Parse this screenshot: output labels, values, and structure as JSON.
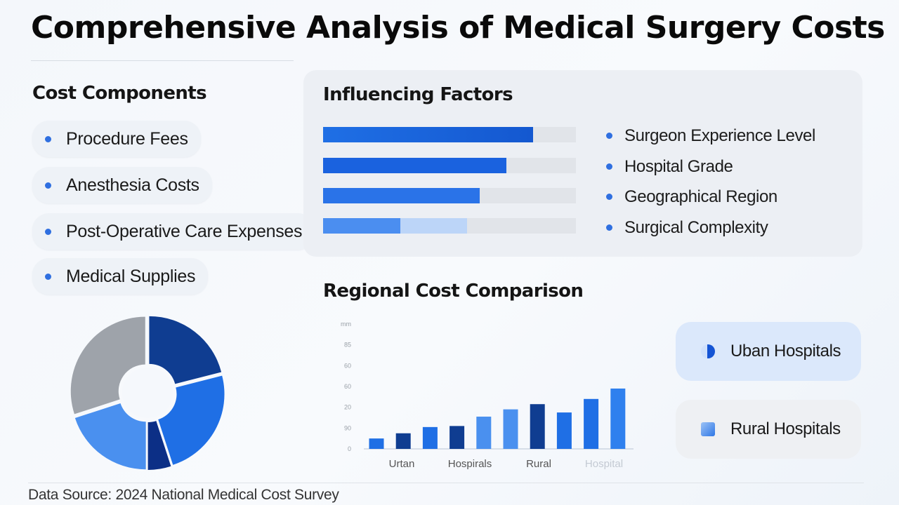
{
  "title": "Comprehensive Analysis of Medical Surgery Costs",
  "cost_components": {
    "heading": "Cost Components",
    "items": [
      {
        "label": "Procedure Fees"
      },
      {
        "label": "Anesthesia Costs"
      },
      {
        "label": "Post-Operative Care Expenses"
      },
      {
        "label": "Medical Supplies"
      }
    ]
  },
  "influencing_factors": {
    "heading": "Influencing Factors",
    "factors": [
      {
        "label": "Surgeon Experience Level",
        "level": 0.83
      },
      {
        "label": "Hospital Grade",
        "level": 0.725
      },
      {
        "label": "Geographical Region",
        "level": 0.62
      },
      {
        "label": "Surgical Complexity",
        "level": 0.305,
        "secondary_level": 0.57
      }
    ]
  },
  "regional": {
    "heading": "Regional Cost Comparison",
    "legend": [
      {
        "label": "Uban Hospitals",
        "icon": "half-circle-icon"
      },
      {
        "label": "Rural Hospitals",
        "icon": "cube-icon"
      }
    ]
  },
  "source": "Data Source: 2024 National Medical Cost Survey",
  "colors": {
    "accent": "#2f6fe0",
    "navy": "#0f3d91",
    "mid_blue": "#1f6fe5",
    "light_blue": "#4a90ef",
    "gray": "#9ea3aa"
  },
  "chart_data": [
    {
      "type": "pie",
      "title": "",
      "style": "donut, exploded slices",
      "slices": [
        {
          "label": "",
          "value": 21,
          "color": "#0f3d91"
        },
        {
          "label": "",
          "value": 24,
          "color": "#1f6fe5"
        },
        {
          "label": "",
          "value": 5,
          "color": "#0c2f86"
        },
        {
          "label": "",
          "value": 20,
          "color": "#4a90ef"
        },
        {
          "label": "",
          "value": 30,
          "color": "#9ea3aa"
        }
      ]
    },
    {
      "type": "bar",
      "title": "",
      "xlabel": "",
      "ylabel": "",
      "ylim": [
        0,
        120
      ],
      "yticks": [
        "0",
        "90",
        "20",
        "60",
        "60",
        "85",
        "mm"
      ],
      "xtick_labels": [
        "Urtan",
        "Hospirals",
        "Rural",
        "Hospital"
      ],
      "grid": false,
      "values": [
        10,
        15,
        21,
        22,
        31,
        38,
        43,
        35,
        48,
        58
      ],
      "colors": [
        "#1f6fe5",
        "#0f3d91",
        "#1f6fe5",
        "#0f3d91",
        "#4a90ef",
        "#4a90ef",
        "#0f3d91",
        "#1f6fe5",
        "#1f6fe5",
        "#2f80ee"
      ]
    }
  ]
}
